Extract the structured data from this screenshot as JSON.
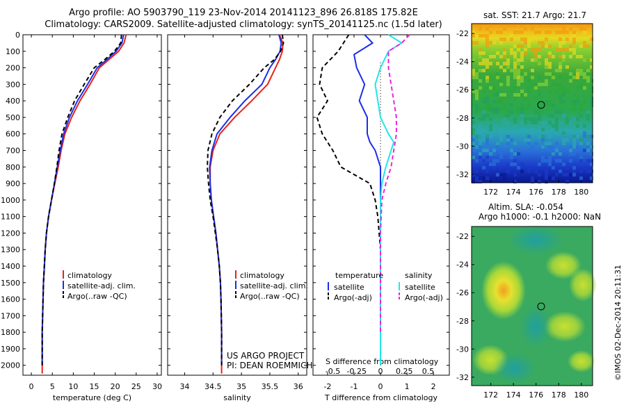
{
  "header": {
    "line1": "Argo profile: AO 5903790_119 23-Nov-2014 20141123_896 26.818S 175.82E",
    "line2": "Climatology: CARS2009. Satellite-adjusted climatology: synTS_20141125.nc (1.5d later)"
  },
  "project": {
    "line1": "US ARGO PROJECT",
    "line2": "PI: DEAN ROEMMICH"
  },
  "side_stamp": "©IMOS 02-Dec-2014 20:11:31",
  "colors": {
    "clim": "#e8201c",
    "sat": "#1a2ee8",
    "argo": "#000000",
    "sal_sat": "#22e6e6",
    "sal_argo": "#ee22dd"
  },
  "chart_data": [
    {
      "type": "line",
      "xlabel": "temperature (deg C)",
      "ylabel": "",
      "xlim": [
        -2,
        31
      ],
      "ylim": [
        2060,
        0
      ],
      "xticks": [
        0,
        5,
        10,
        15,
        20,
        25,
        30
      ],
      "yticks": [
        0,
        100,
        200,
        300,
        400,
        500,
        600,
        700,
        800,
        900,
        1000,
        1100,
        1200,
        1300,
        1400,
        1500,
        1600,
        1700,
        1800,
        1900,
        2000
      ],
      "legend": [
        "climatology",
        "satellite-adj. clim.",
        "Argo(..raw -QC)"
      ],
      "series": [
        {
          "name": "climatology",
          "color": "#e8201c",
          "dash": "",
          "x": [
            22.6,
            22.1,
            20.8,
            18.5,
            16.2,
            14.0,
            11.6,
            9.6,
            8.0,
            7.1,
            6.4,
            5.6,
            4.8,
            4.1,
            3.6,
            3.3,
            3.1,
            2.9,
            2.8,
            2.7,
            2.6,
            2.6
          ],
          "y": [
            0,
            50,
            100,
            150,
            200,
            300,
            400,
            500,
            600,
            700,
            800,
            900,
            1000,
            1100,
            1200,
            1300,
            1400,
            1500,
            1600,
            1700,
            1800,
            2050
          ]
        },
        {
          "name": "satellite-adj. clim.",
          "color": "#1a2ee8",
          "dash": "",
          "x": [
            22.0,
            21.6,
            20.2,
            18.0,
            15.7,
            13.4,
            11.0,
            9.1,
            7.7,
            6.9,
            6.2,
            5.5,
            4.8,
            4.1,
            3.6,
            3.3,
            3.1,
            2.9,
            2.8,
            2.7,
            2.6,
            2.6
          ],
          "y": [
            0,
            50,
            100,
            150,
            200,
            300,
            400,
            500,
            600,
            700,
            800,
            900,
            1000,
            1100,
            1200,
            1300,
            1400,
            1500,
            1600,
            1700,
            1800,
            2000
          ]
        },
        {
          "name": "Argo(..raw -QC)",
          "color": "#000000",
          "dash": "6,4",
          "x": [
            21.5,
            21.3,
            19.8,
            17.5,
            15.0,
            12.6,
            10.3,
            8.7,
            7.3,
            6.6,
            6.1,
            5.5,
            4.8,
            4.1,
            3.6,
            3.3,
            3.1,
            2.9,
            2.8,
            2.7,
            2.6,
            2.6
          ],
          "y": [
            0,
            50,
            100,
            150,
            200,
            300,
            400,
            500,
            600,
            700,
            800,
            900,
            1000,
            1100,
            1200,
            1300,
            1400,
            1500,
            1600,
            1700,
            1800,
            2000
          ]
        }
      ]
    },
    {
      "type": "line",
      "xlabel": "salinity",
      "ylabel": "",
      "xlim": [
        33.7,
        36.15
      ],
      "ylim": [
        2060,
        0
      ],
      "xticks": [
        34,
        34.5,
        35,
        35.5,
        36
      ],
      "yticks": [
        0,
        100,
        200,
        300,
        400,
        500,
        600,
        700,
        800,
        900,
        1000,
        1100,
        1200,
        1300,
        1400,
        1500,
        1600,
        1700,
        1800,
        1900,
        2000
      ],
      "legend": [
        "climatology",
        "satellite-adj. clim.",
        "Argo(..raw -QC)"
      ],
      "series": [
        {
          "name": "climatology",
          "color": "#e8201c",
          "dash": "",
          "x": [
            35.67,
            35.73,
            35.72,
            35.67,
            35.6,
            35.46,
            35.18,
            34.88,
            34.62,
            34.5,
            34.45,
            34.45,
            34.47,
            34.51,
            34.55,
            34.58,
            34.61,
            34.63,
            34.64,
            34.65,
            34.65
          ],
          "y": [
            0,
            50,
            100,
            150,
            200,
            300,
            400,
            500,
            600,
            700,
            800,
            900,
            1000,
            1100,
            1200,
            1300,
            1400,
            1500,
            1600,
            1800,
            2050
          ]
        },
        {
          "name": "satellite-adj. clim.",
          "color": "#1a2ee8",
          "dash": "",
          "x": [
            35.66,
            35.7,
            35.68,
            35.6,
            35.5,
            35.36,
            35.06,
            34.8,
            34.57,
            34.48,
            34.44,
            34.45,
            34.47,
            34.51,
            34.55,
            34.58,
            34.61,
            34.63,
            34.64,
            34.65,
            34.65
          ],
          "y": [
            0,
            50,
            100,
            150,
            200,
            300,
            400,
            500,
            600,
            700,
            800,
            900,
            1000,
            1100,
            1200,
            1300,
            1400,
            1500,
            1600,
            1800,
            2000
          ]
        },
        {
          "name": "Argo(..raw -QC)",
          "color": "#000000",
          "dash": "6,4",
          "x": [
            35.72,
            35.74,
            35.69,
            35.58,
            35.4,
            35.14,
            34.84,
            34.62,
            34.48,
            34.41,
            34.4,
            34.42,
            34.45,
            34.5,
            34.54,
            34.58,
            34.61,
            34.63,
            34.64,
            34.65,
            34.65
          ],
          "y": [
            0,
            50,
            100,
            150,
            200,
            300,
            400,
            500,
            600,
            700,
            800,
            900,
            1000,
            1100,
            1200,
            1300,
            1400,
            1500,
            1600,
            1800,
            2000
          ]
        }
      ]
    },
    {
      "type": "line",
      "xlabel": "T difference from climatology",
      "xlabel_top": "S difference from climatology",
      "ylabel": "",
      "xlim": [
        -2.55,
        2.6
      ],
      "ylim": [
        2060,
        0
      ],
      "xticks": [
        -2,
        -1,
        0,
        1,
        2
      ],
      "xticks_top": [
        "-0.5",
        "-0.25",
        "0",
        "0.25",
        "0.5"
      ],
      "yticks": [
        0,
        100,
        200,
        300,
        400,
        500,
        600,
        700,
        800,
        900,
        1000,
        1100,
        1200,
        1300,
        1400,
        1500,
        1600,
        1700,
        1800,
        1900,
        2000
      ],
      "legend_titles": [
        "temperature",
        "salinity"
      ],
      "legend": [
        "satellite",
        "Argo(-adj)",
        "satellite",
        "Argo(-adj)"
      ],
      "series": [
        {
          "name": "satellite",
          "color": "#1a2ee8",
          "dash": "",
          "x": [
            -0.6,
            -0.3,
            -1.0,
            -0.9,
            -0.6,
            -0.8,
            -0.5,
            -0.5,
            -0.4,
            -0.2,
            0.0,
            0.0,
            0.0,
            0.0,
            0.0,
            0.0,
            0.0,
            0.0,
            0.0
          ],
          "y": [
            0,
            50,
            120,
            200,
            300,
            400,
            500,
            600,
            650,
            700,
            800,
            900,
            1000,
            1100,
            1300,
            1500,
            1700,
            1900,
            2000
          ]
        },
        {
          "name": "Argo(-adj)",
          "color": "#000000",
          "dash": "6,4",
          "x": [
            -1.2,
            -1.6,
            -2.2,
            -2.3,
            -2.0,
            -2.4,
            -2.2,
            -1.8,
            -1.5,
            -0.4,
            -0.2,
            -0.1,
            0.0,
            0.0,
            0.0,
            0.0,
            0.0
          ],
          "y": [
            0,
            100,
            200,
            300,
            400,
            500,
            600,
            700,
            800,
            900,
            1000,
            1100,
            1300,
            1500,
            1700,
            1900,
            2000
          ]
        },
        {
          "name": "satellite",
          "color": "#22e6e6",
          "dash": "",
          "x": [
            0.3,
            0.8,
            0.3,
            0.0,
            -0.2,
            -0.1,
            0.0,
            0.3,
            0.5,
            0.4,
            0.2,
            0.05,
            0.0,
            0.0,
            0.0,
            0.0,
            0.0
          ],
          "y": [
            0,
            50,
            100,
            200,
            300,
            400,
            500,
            600,
            650,
            700,
            800,
            900,
            1000,
            1200,
            1500,
            1800,
            2000
          ]
        },
        {
          "name": "Argo(-adj)",
          "color": "#ee22dd",
          "dash": "6,4",
          "x": [
            1.1,
            0.8,
            0.3,
            0.3,
            0.4,
            0.5,
            0.6,
            0.6,
            0.5,
            0.4,
            0.2,
            0.05,
            0.0,
            0.0,
            0.0,
            0.0
          ],
          "y": [
            0,
            50,
            100,
            200,
            300,
            400,
            500,
            600,
            700,
            800,
            900,
            1000,
            1200,
            1400,
            1600,
            1800
          ]
        }
      ]
    },
    {
      "type": "heatmap",
      "title": "sat. SST: 21.7 Argo: 21.7",
      "xticks": [
        172,
        174,
        176,
        178,
        180
      ],
      "yticks": [
        -22,
        -24,
        -26,
        -28,
        -30,
        -32
      ],
      "marker": {
        "lon": 175.82,
        "lat": -26.818
      }
    },
    {
      "type": "heatmap",
      "title": "Altim. SLA: -0.054",
      "subtitle": "Argo h1000: -0.1 h2000: NaN",
      "xticks": [
        172,
        174,
        176,
        178,
        180
      ],
      "yticks": [
        -22,
        -24,
        -26,
        -28,
        -30,
        -32
      ],
      "marker": {
        "lon": 175.82,
        "lat": -26.818
      }
    }
  ]
}
